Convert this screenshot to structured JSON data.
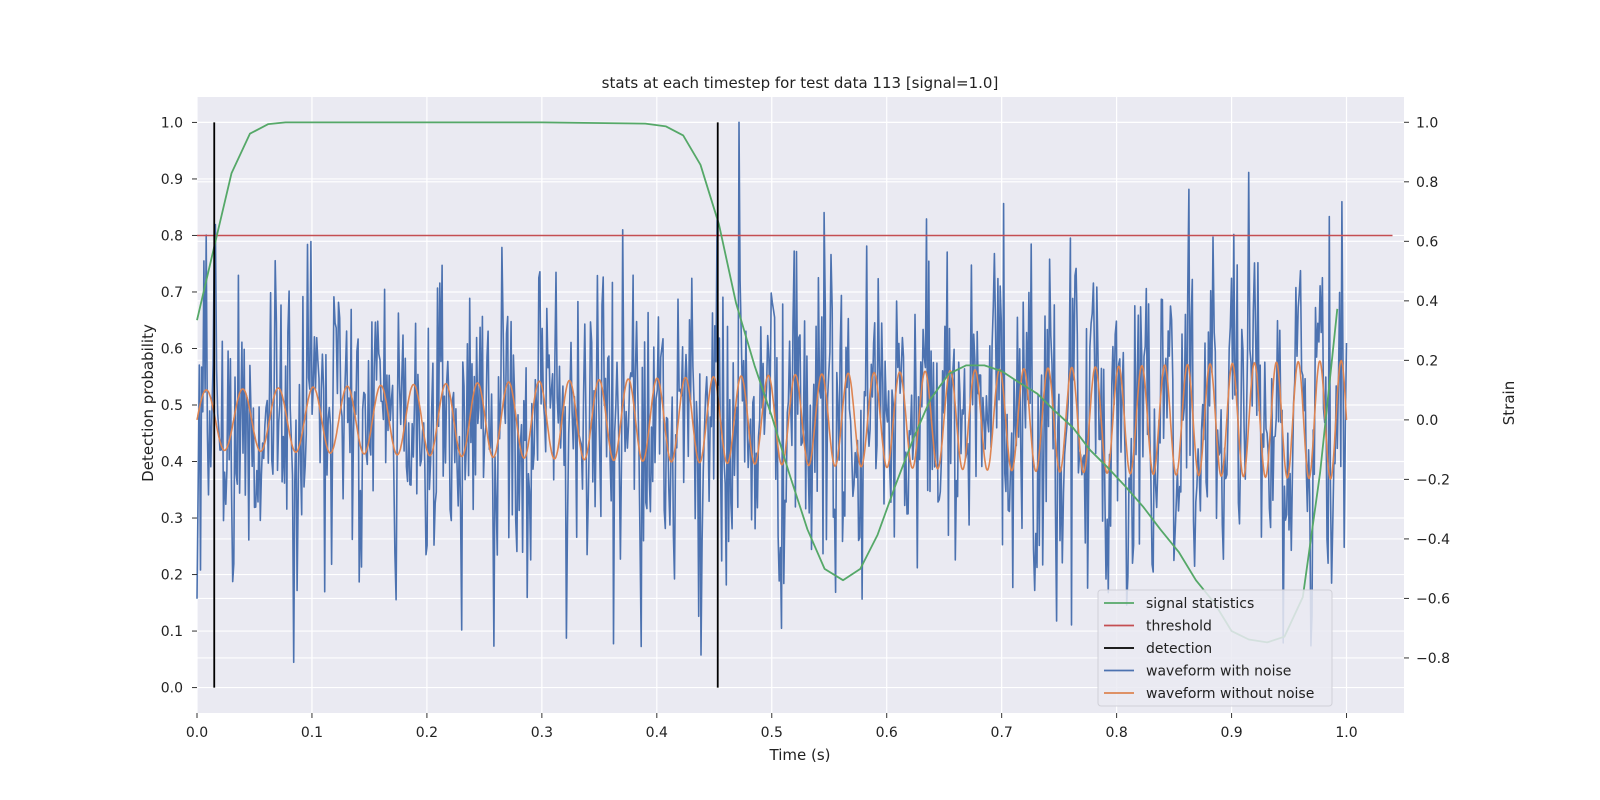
{
  "chart_data": {
    "type": "line",
    "title": "stats at each timestep for test data 113 [signal=1.0]",
    "xlabel": "Time (s)",
    "ylabel": "Detection probability",
    "y2label": "Strain",
    "xlim": [
      0.0,
      1.05
    ],
    "ylim": [
      -0.045,
      1.045
    ],
    "y2lim": [
      -0.985,
      1.085
    ],
    "grid": true,
    "legend_position": "lower-right",
    "x_ticks": [
      "0.0",
      "0.1",
      "0.2",
      "0.3",
      "0.4",
      "0.5",
      "0.6",
      "0.7",
      "0.8",
      "0.9",
      "1.0"
    ],
    "y_ticks": [
      "0.0",
      "0.1",
      "0.2",
      "0.3",
      "0.4",
      "0.5",
      "0.6",
      "0.7",
      "0.8",
      "0.9",
      "1.0"
    ],
    "y2_ticks": [
      "−0.8",
      "−0.6",
      "−0.4",
      "−0.2",
      "0.0",
      "0.2",
      "0.4",
      "0.6",
      "0.8",
      "1.0"
    ],
    "series": [
      {
        "name": "signal statistics",
        "axis": "left",
        "color": "#55a868",
        "x": [
          0.0,
          0.015,
          0.03,
          0.046,
          0.062,
          0.077,
          0.1,
          0.2,
          0.3,
          0.39,
          0.408,
          0.423,
          0.438,
          0.454,
          0.469,
          0.485,
          0.5,
          0.515,
          0.531,
          0.546,
          0.562,
          0.577,
          0.592,
          0.608,
          0.623,
          0.638,
          0.654,
          0.669,
          0.685,
          0.7,
          0.715,
          0.731,
          0.746,
          0.762,
          0.777,
          0.792,
          0.808,
          0.823,
          0.838,
          0.854,
          0.869,
          0.885,
          0.9,
          0.915,
          0.931,
          0.946,
          0.962,
          0.977,
          0.992
        ],
        "values": [
          0.65,
          0.78,
          0.91,
          0.98,
          0.997,
          1.0,
          1.0,
          1.0,
          1.0,
          0.998,
          0.993,
          0.977,
          0.925,
          0.82,
          0.68,
          0.57,
          0.48,
          0.38,
          0.28,
          0.21,
          0.19,
          0.21,
          0.27,
          0.36,
          0.44,
          0.51,
          0.555,
          0.57,
          0.57,
          0.56,
          0.54,
          0.52,
          0.49,
          0.46,
          0.42,
          0.39,
          0.355,
          0.32,
          0.28,
          0.24,
          0.19,
          0.15,
          0.1,
          0.085,
          0.08,
          0.09,
          0.16,
          0.38,
          0.67
        ]
      },
      {
        "name": "threshold",
        "axis": "left",
        "color": "#c44e52",
        "x": [
          0.0,
          1.04
        ],
        "values": [
          0.8,
          0.8
        ]
      },
      {
        "name": "waveform with noise",
        "axis": "right",
        "color": "#4c72b0",
        "generated": "noisy strain, about 1000 samples from 0 to 1 s, range about -0.9 to 1.0"
      },
      {
        "name": "waveform without noise",
        "axis": "right",
        "color": "#dd8452",
        "generated": "sinusoid, amplitude about 0.1 rising to 0.2, frequency rising from about 31 Hz to 54 Hz"
      }
    ],
    "detections": {
      "name": "detection",
      "axis": "left",
      "color": "#000000",
      "x": [
        0.015,
        0.453
      ],
      "ymin": 0.0,
      "ymax": 1.0
    },
    "legend": [
      "signal statistics",
      "threshold",
      "detection",
      "waveform with noise",
      "waveform without noise"
    ]
  }
}
